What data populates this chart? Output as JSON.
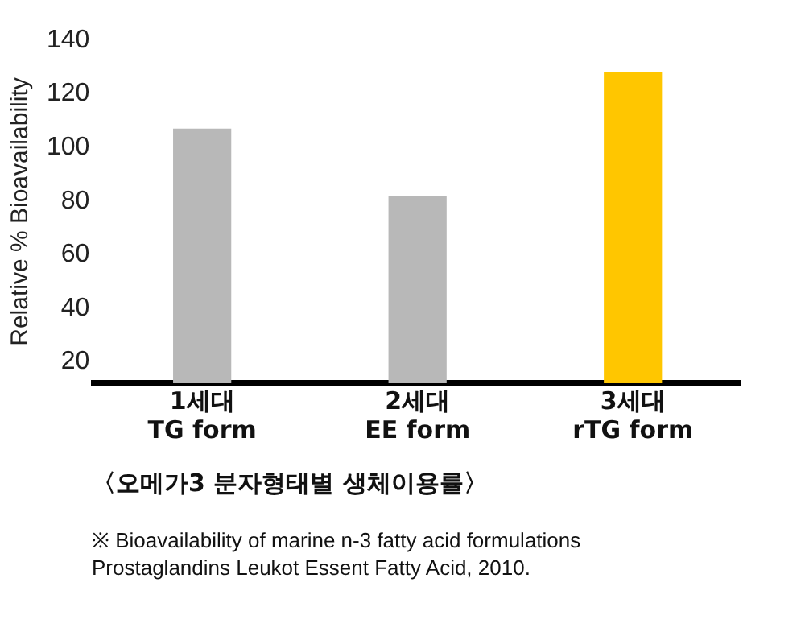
{
  "chart_data": {
    "type": "bar",
    "title": "〈오메가3 분자형태별 생체이용률〉",
    "ylabel": "Relative % Bioavailability",
    "categories": [
      "1세대\nTG form",
      "2세대\nEE form",
      "3세대\nrTG form"
    ],
    "values": [
      107,
      82,
      128
    ],
    "colors": [
      "#b8b8b8",
      "#b8b8b8",
      "#ffc600"
    ],
    "ylim": [
      12,
      140
    ],
    "yticks": [
      20,
      40,
      60,
      80,
      100,
      120,
      140
    ],
    "grid": false,
    "legend": false,
    "annotations": [
      "※ Bioavailability of marine n-3 fatty acid formulations\nProstaglandins Leukot Essent Fatty Acid, 2010."
    ]
  }
}
